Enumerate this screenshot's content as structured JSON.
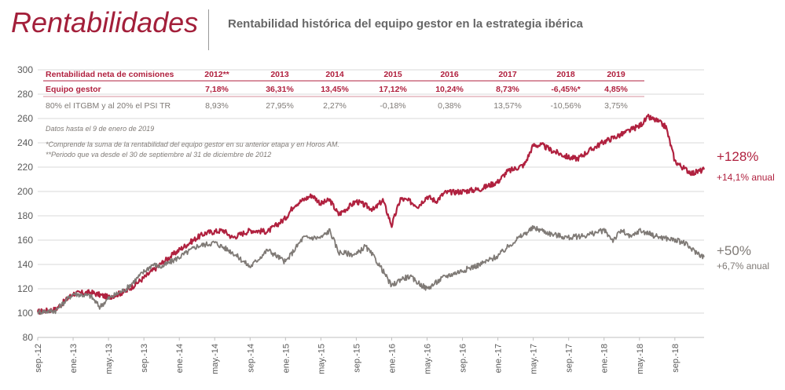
{
  "header": {
    "title": "Rentabilidades",
    "subtitle": "Rentabilidad histórica del equipo gestor en la estrategia ibérica"
  },
  "table": {
    "header_label": "Rentabilidad neta de comisiones",
    "years": [
      "2012**",
      "2013",
      "2014",
      "2015",
      "2016",
      "2017",
      "2018",
      "2019"
    ],
    "rows": [
      {
        "label": "Equipo gestor",
        "values": [
          "7,18%",
          "36,31%",
          "13,45%",
          "17,12%",
          "10,24%",
          "8,73%",
          "-6,45%*",
          "4,85%"
        ]
      },
      {
        "label": "80% el ITGBM y al 20% el PSI TR",
        "values": [
          "8,93%",
          "27,95%",
          "2,27%",
          "-0,18%",
          "0,38%",
          "13,57%",
          "-10,56%",
          "3,75%"
        ]
      }
    ],
    "note_date": "Datos hasta el 9 de enero de 2019",
    "note_1": "*Comprende la suma de la rentabilidad del equipo gestor en su anterior etapa y en Horos AM.",
    "note_2": "**Periodo que va desde el 30 de septiembre al 31 de diciembre de 2012"
  },
  "annotations": {
    "red_total": "+128%",
    "red_annual": "+14,1% anual",
    "gray_total": "+50%",
    "gray_annual": "+6,7% anual"
  },
  "colors": {
    "red": "#b0213f",
    "gray": "#7f7a76",
    "grid": "#d9d9d9",
    "axis_text": "#595959"
  },
  "chart_data": {
    "type": "line",
    "title": "Rentabilidad histórica del equipo gestor en la estrategia ibérica",
    "xlabel": "",
    "ylabel": "",
    "ylim": [
      80,
      300
    ],
    "yticks": [
      80,
      100,
      120,
      140,
      160,
      180,
      200,
      220,
      240,
      260,
      280,
      300
    ],
    "x_tick_labels": [
      "sep.-12",
      "ene.-13",
      "may.-13",
      "sep.-13",
      "ene.-14",
      "may.-14",
      "sep.-14",
      "ene.-15",
      "may.-15",
      "sep.-15",
      "ene.-16",
      "may.-16",
      "sep.-16",
      "ene.-17",
      "may.-17",
      "sep.-17",
      "ene.-18",
      "may.-18",
      "sep.-18"
    ],
    "x_months": [
      0,
      4,
      8,
      12,
      16,
      20,
      24,
      28,
      32,
      36,
      40,
      44,
      48,
      52,
      56,
      60,
      64,
      68,
      72
    ],
    "x_range_months": [
      0,
      75.3
    ],
    "series": [
      {
        "name": "Equipo gestor",
        "color": "#b0213f",
        "x": [
          0,
          2,
          4,
          6,
          8,
          10,
          12,
          14,
          16,
          18,
          19,
          21,
          22,
          24,
          26,
          28,
          29,
          31,
          32,
          33,
          34,
          36,
          38,
          39,
          40,
          41,
          42,
          43,
          44,
          45,
          46,
          48,
          50,
          52,
          53,
          55,
          56,
          57,
          58,
          60,
          61,
          62,
          64,
          66,
          68,
          69,
          70,
          71,
          72,
          73,
          74,
          75.3
        ],
        "y": [
          101,
          103,
          116,
          117,
          113,
          118,
          129,
          141,
          152,
          162,
          166,
          168,
          162,
          168,
          167,
          178,
          189,
          197,
          190,
          193,
          181,
          192,
          185,
          193,
          172,
          194,
          192,
          188,
          196,
          192,
          199,
          200,
          202,
          208,
          216,
          222,
          238,
          238,
          234,
          228,
          227,
          232,
          241,
          247,
          254,
          261,
          258,
          253,
          225,
          219,
          215,
          218
        ]
      },
      {
        "name": "80% el ITGBM y al 20% el PSI TR",
        "color": "#7f7a76",
        "x": [
          0,
          2,
          4,
          6,
          7,
          8,
          10,
          12,
          13,
          14,
          16,
          18,
          20,
          22,
          24,
          26,
          28,
          30,
          32,
          33,
          34,
          36,
          37,
          38,
          39,
          40,
          41,
          42,
          44,
          46,
          48,
          50,
          52,
          54,
          56,
          57,
          58,
          60,
          62,
          64,
          65,
          66,
          67,
          68,
          70,
          72,
          73,
          74,
          75.3
        ],
        "y": [
          101,
          102,
          116,
          114,
          105,
          112,
          120,
          134,
          140,
          138,
          146,
          155,
          158,
          150,
          138,
          152,
          142,
          162,
          162,
          168,
          150,
          148,
          155,
          146,
          135,
          122,
          128,
          130,
          120,
          130,
          135,
          140,
          147,
          160,
          170,
          168,
          165,
          162,
          164,
          168,
          160,
          168,
          162,
          168,
          163,
          160,
          158,
          152,
          146
        ]
      }
    ]
  }
}
